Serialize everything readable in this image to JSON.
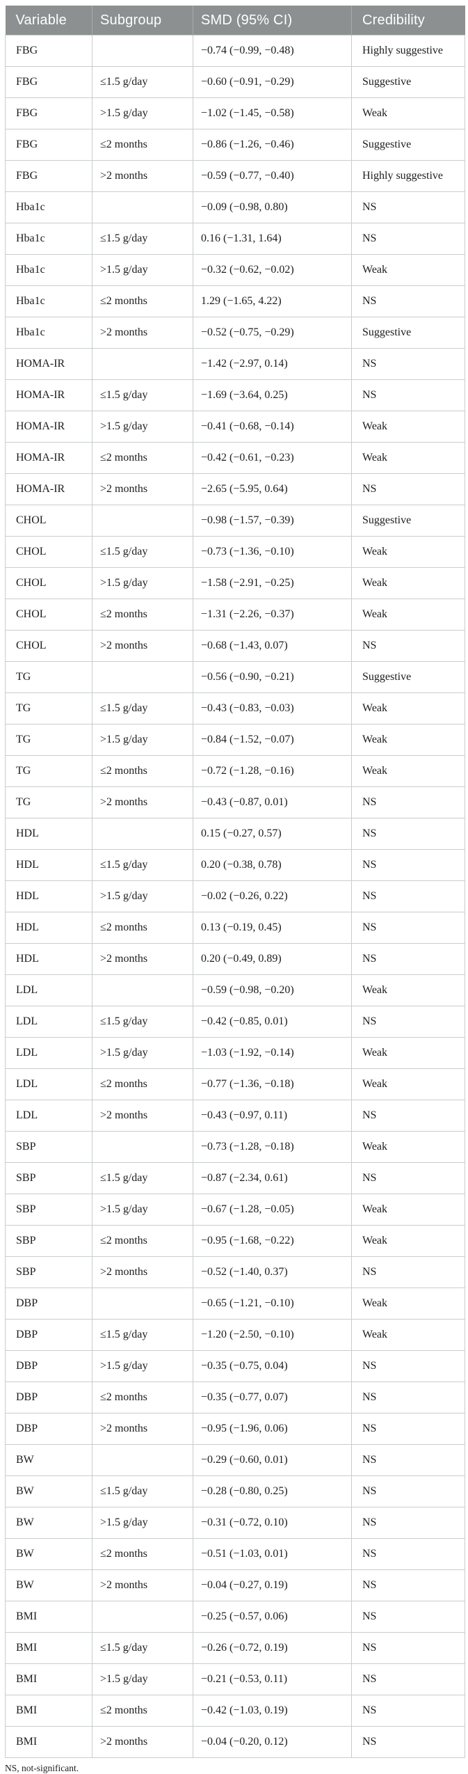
{
  "colors": {
    "header_bg": "#8c9091",
    "header_text": "#ffffff",
    "row_bg": "#ffffff",
    "border": "#c9cdcd",
    "body_text": "#1c1c1c"
  },
  "table": {
    "columns": [
      "Variable",
      "Subgroup",
      "SMD (95% CI)",
      "Credibility"
    ],
    "rows": [
      [
        "FBG",
        "",
        "−0.74 (−0.99, −0.48)",
        "Highly suggestive"
      ],
      [
        "FBG",
        "≤1.5 g/day",
        "−0.60 (−0.91, −0.29)",
        "Suggestive"
      ],
      [
        "FBG",
        ">1.5 g/day",
        "−1.02 (−1.45, −0.58)",
        "Weak"
      ],
      [
        "FBG",
        "≤2 months",
        "−0.86 (−1.26, −0.46)",
        "Suggestive"
      ],
      [
        "FBG",
        ">2 months",
        "−0.59 (−0.77, −0.40)",
        "Highly suggestive"
      ],
      [
        "Hba1c",
        "",
        "−0.09 (−0.98, 0.80)",
        "NS"
      ],
      [
        "Hba1c",
        "≤1.5 g/day",
        "0.16 (−1.31, 1.64)",
        "NS"
      ],
      [
        "Hba1c",
        ">1.5 g/day",
        "−0.32 (−0.62, −0.02)",
        "Weak"
      ],
      [
        "Hba1c",
        "≤2 months",
        "1.29 (−1.65, 4.22)",
        "NS"
      ],
      [
        "Hba1c",
        ">2 months",
        "−0.52 (−0.75, −0.29)",
        "Suggestive"
      ],
      [
        "HOMA-IR",
        "",
        "−1.42 (−2.97, 0.14)",
        "NS"
      ],
      [
        "HOMA-IR",
        "≤1.5 g/day",
        "−1.69 (−3.64, 0.25)",
        "NS"
      ],
      [
        "HOMA-IR",
        ">1.5 g/day",
        "−0.41 (−0.68, −0.14)",
        "Weak"
      ],
      [
        "HOMA-IR",
        "≤2 months",
        "−0.42 (−0.61, −0.23)",
        "Weak"
      ],
      [
        "HOMA-IR",
        ">2 months",
        "−2.65 (−5.95, 0.64)",
        "NS"
      ],
      [
        "CHOL",
        "",
        "−0.98 (−1.57, −0.39)",
        "Suggestive"
      ],
      [
        "CHOL",
        "≤1.5 g/day",
        "−0.73 (−1.36, −0.10)",
        "Weak"
      ],
      [
        "CHOL",
        ">1.5 g/day",
        "−1.58 (−2.91, −0.25)",
        "Weak"
      ],
      [
        "CHOL",
        "≤2 months",
        "−1.31 (−2.26, −0.37)",
        "Weak"
      ],
      [
        "CHOL",
        ">2 months",
        "−0.68 (−1.43, 0.07)",
        "NS"
      ],
      [
        "TG",
        "",
        "−0.56 (−0.90, −0.21)",
        "Suggestive"
      ],
      [
        "TG",
        "≤1.5 g/day",
        "−0.43 (−0.83, −0.03)",
        "Weak"
      ],
      [
        "TG",
        ">1.5 g/day",
        "−0.84 (−1.52, −0.07)",
        "Weak"
      ],
      [
        "TG",
        "≤2 months",
        "−0.72 (−1.28, −0.16)",
        "Weak"
      ],
      [
        "TG",
        ">2 months",
        "−0.43 (−0.87, 0.01)",
        "NS"
      ],
      [
        "HDL",
        "",
        "0.15 (−0.27, 0.57)",
        "NS"
      ],
      [
        "HDL",
        "≤1.5 g/day",
        "0.20 (−0.38, 0.78)",
        "NS"
      ],
      [
        "HDL",
        ">1.5 g/day",
        "−0.02 (−0.26, 0.22)",
        "NS"
      ],
      [
        "HDL",
        "≤2 months",
        "0.13 (−0.19, 0.45)",
        "NS"
      ],
      [
        "HDL",
        ">2 months",
        "0.20 (−0.49, 0.89)",
        "NS"
      ],
      [
        "LDL",
        "",
        "−0.59 (−0.98, −0.20)",
        "Weak"
      ],
      [
        "LDL",
        "≤1.5 g/day",
        "−0.42 (−0.85, 0.01)",
        "NS"
      ],
      [
        "LDL",
        ">1.5 g/day",
        "−1.03 (−1.92, −0.14)",
        "Weak"
      ],
      [
        "LDL",
        "≤2 months",
        "−0.77 (−1.36, −0.18)",
        "Weak"
      ],
      [
        "LDL",
        ">2 months",
        "−0.43 (−0.97, 0.11)",
        "NS"
      ],
      [
        "SBP",
        "",
        "−0.73 (−1.28, −0.18)",
        "Weak"
      ],
      [
        "SBP",
        "≤1.5 g/day",
        "−0.87 (−2.34, 0.61)",
        "NS"
      ],
      [
        "SBP",
        ">1.5 g/day",
        "−0.67 (−1.28, −0.05)",
        "Weak"
      ],
      [
        "SBP",
        "≤2 months",
        "−0.95 (−1.68, −0.22)",
        "Weak"
      ],
      [
        "SBP",
        ">2 months",
        "−0.52 (−1.40, 0.37)",
        "NS"
      ],
      [
        "DBP",
        "",
        "−0.65 (−1.21, −0.10)",
        "Weak"
      ],
      [
        "DBP",
        "≤1.5 g/day",
        "−1.20 (−2.50, −0.10)",
        "Weak"
      ],
      [
        "DBP",
        ">1.5 g/day",
        "−0.35 (−0.75, 0.04)",
        "NS"
      ],
      [
        "DBP",
        "≤2 months",
        "−0.35 (−0.77, 0.07)",
        "NS"
      ],
      [
        "DBP",
        ">2 months",
        "−0.95 (−1.96, 0.06)",
        "NS"
      ],
      [
        "BW",
        "",
        "−0.29 (−0.60, 0.01)",
        "NS"
      ],
      [
        "BW",
        "≤1.5 g/day",
        "−0.28 (−0.80, 0.25)",
        "NS"
      ],
      [
        "BW",
        ">1.5 g/day",
        "−0.31 (−0.72, 0.10)",
        "NS"
      ],
      [
        "BW",
        "≤2 months",
        "−0.51 (−1.03, 0.01)",
        "NS"
      ],
      [
        "BW",
        ">2 months",
        "−0.04 (−0.27, 0.19)",
        "NS"
      ],
      [
        "BMI",
        "",
        "−0.25 (−0.57, 0.06)",
        "NS"
      ],
      [
        "BMI",
        "≤1.5 g/day",
        "−0.26 (−0.72, 0.19)",
        "NS"
      ],
      [
        "BMI",
        ">1.5 g/day",
        "−0.21 (−0.53, 0.11)",
        "NS"
      ],
      [
        "BMI",
        "≤2 months",
        "−0.42 (−1.03, 0.19)",
        "NS"
      ],
      [
        "BMI",
        ">2 months",
        "−0.04 (−0.20, 0.12)",
        "NS"
      ]
    ],
    "footnote": "NS, not-significant."
  }
}
